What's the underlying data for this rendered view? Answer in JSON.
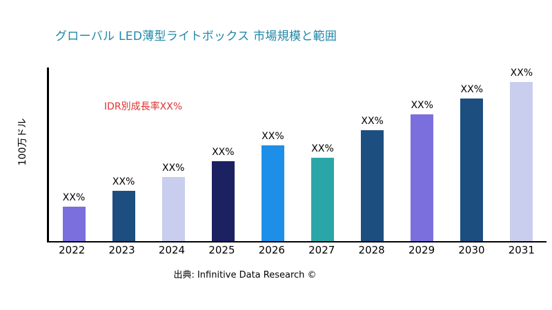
{
  "chart_data": {
    "type": "bar",
    "title": "グローバル LED薄型ライトボックス 市場規模と範囲",
    "ylabel": "100万ドル",
    "xlabel": "",
    "annotation": "IDR別成長率XX%",
    "source": "出典: Infinitive Data Research ©",
    "categories": [
      "2022",
      "2023",
      "2024",
      "2025",
      "2026",
      "2027",
      "2028",
      "2029",
      "2030",
      "2031"
    ],
    "values": [
      20,
      29,
      37,
      46,
      55,
      48,
      64,
      73,
      82,
      92
    ],
    "bar_labels": [
      "XX%",
      "XX%",
      "XX%",
      "XX%",
      "XX%",
      "XX%",
      "XX%",
      "XX%",
      "XX%",
      "XX%"
    ],
    "colors": [
      "#7B6FDE",
      "#1C4E80",
      "#C9CDEE",
      "#1B2161",
      "#1D8FE8",
      "#2AA6A8",
      "#1C4E80",
      "#7B6FDE",
      "#1C4E80",
      "#C9CDEE"
    ],
    "ylim": [
      0,
      100
    ],
    "grid": false,
    "legend": "none",
    "title_color": "#2087A8",
    "annotation_color": "#E03131",
    "axis_color": "#000000"
  }
}
